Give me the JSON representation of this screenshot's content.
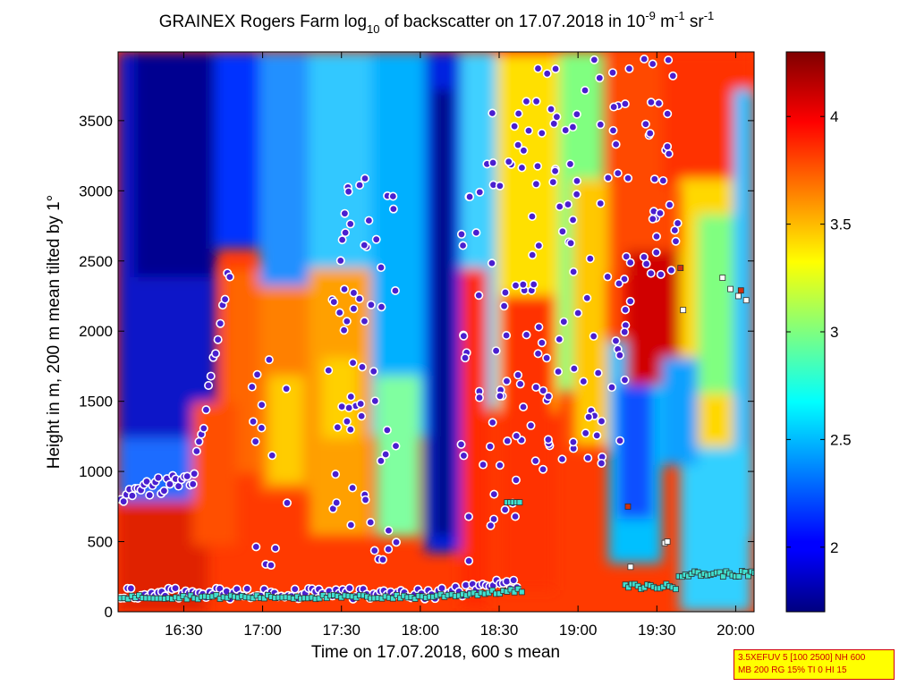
{
  "chart_data": {
    "type": "heatmap",
    "title": {
      "part1": "GRAINEX Rogers Farm log",
      "sub": "10",
      "part2": " of backscatter on 17.07.2018 in 10",
      "sup1": "-9",
      "part3": " m",
      "sup2": "-1",
      "part4": " sr",
      "sup3": "-1"
    },
    "xlabel": "Time on 17.07.2018, 600 s mean",
    "ylabel": "Height in m, 200 m mean tilted by 1°",
    "x_ticks": [
      "16:30",
      "17:00",
      "17:30",
      "18:00",
      "18:30",
      "19:00",
      "19:30",
      "20:00"
    ],
    "x_tick_minutes": [
      990,
      1020,
      1050,
      1080,
      1110,
      1140,
      1170,
      1200
    ],
    "xlim_minutes": [
      965,
      1207
    ],
    "y_ticks": [
      "0",
      "500",
      "1000",
      "1500",
      "2000",
      "2500",
      "3000",
      "3500"
    ],
    "y_tick_values": [
      0,
      500,
      1000,
      1500,
      2000,
      2500,
      3000,
      3500
    ],
    "ylim": [
      0,
      3990
    ],
    "colorbar": {
      "ticks": [
        "2",
        "2.5",
        "3",
        "3.5",
        "4"
      ],
      "tick_values": [
        2,
        2.5,
        3,
        3.5,
        4
      ],
      "range": [
        1.7,
        4.3
      ],
      "colormap": "jet"
    },
    "markers": {
      "red_circles": "layer detections",
      "square_markers": "cloud base / aerosol layer height"
    }
  },
  "info_box": {
    "line1": "3.5XEFUV 5 [100 2500] NH 600",
    "line2": "MB 200 RG 15% TI 0 HI 15"
  }
}
